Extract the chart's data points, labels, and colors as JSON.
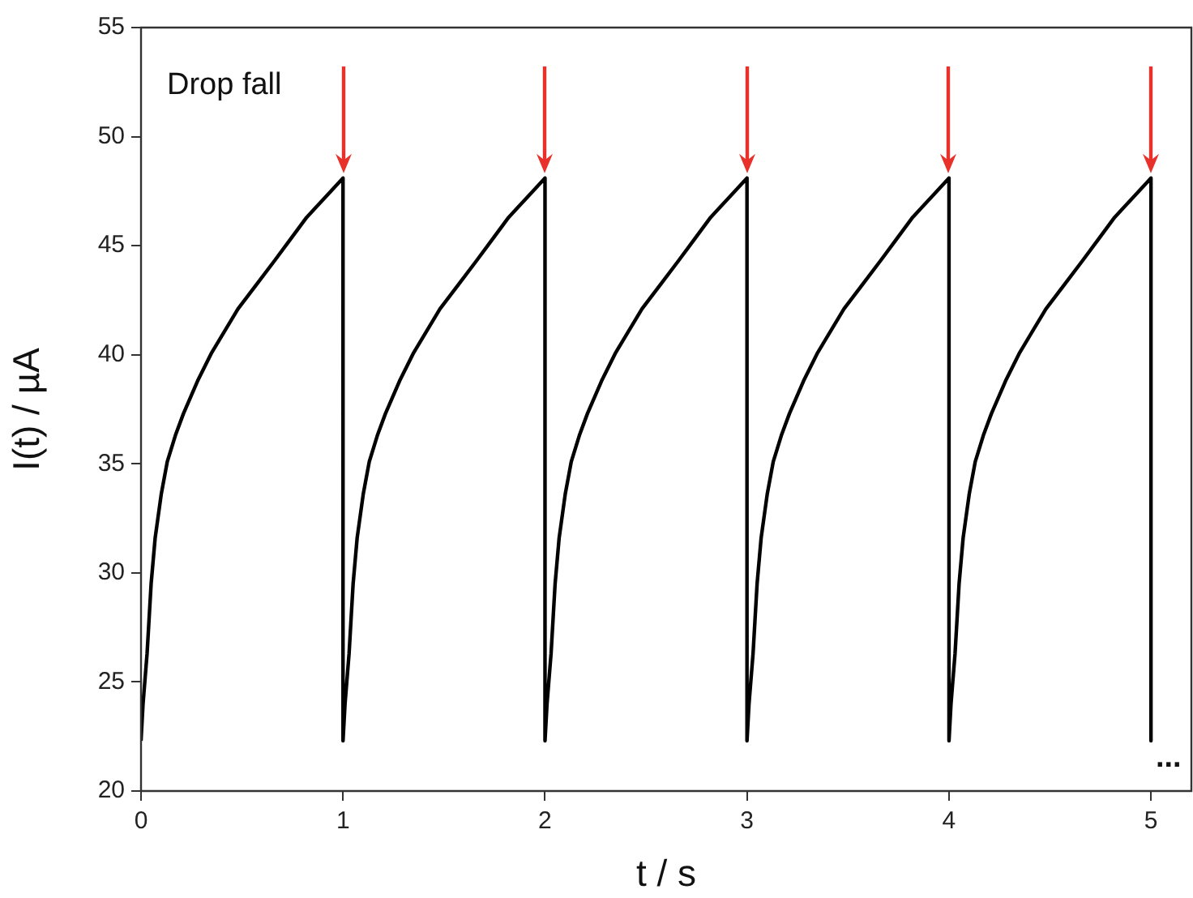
{
  "chart_data": {
    "type": "line",
    "xlabel": "t / s",
    "ylabel": "I(t) / µA",
    "xlim": [
      0,
      5.2
    ],
    "ylim": [
      20,
      55
    ],
    "xticks": [
      0,
      1,
      2,
      3,
      4,
      5
    ],
    "yticks": [
      20,
      25,
      30,
      35,
      40,
      45,
      50,
      55
    ],
    "grid": false,
    "legend": false,
    "marker": "none",
    "line_style": "solid",
    "annotations": [
      "Drop fall",
      "..."
    ],
    "series": [
      {
        "color": "#000000",
        "x": [
          0,
          0.01,
          0.03,
          0.05,
          0.07,
          0.1,
          0.13,
          0.17,
          0.21,
          0.28,
          0.35,
          0.48,
          0.57,
          0.66,
          0.74,
          0.82,
          0.91,
          1,
          1,
          1.01,
          1.03,
          1.05,
          1.07,
          1.1,
          1.13,
          1.17,
          1.21,
          1.28,
          1.35,
          1.48,
          1.57,
          1.66,
          1.74,
          1.82,
          1.91,
          2,
          2,
          2.01,
          2.03,
          2.05,
          2.07,
          2.1,
          2.13,
          2.17,
          2.21,
          2.28,
          2.35,
          2.48,
          2.57,
          2.66,
          2.74,
          2.82,
          2.91,
          3,
          3,
          3.01,
          3.03,
          3.05,
          3.07,
          3.1,
          3.13,
          3.17,
          3.21,
          3.28,
          3.35,
          3.48,
          3.57,
          3.66,
          3.74,
          3.82,
          3.91,
          4,
          4,
          4.01,
          4.03,
          4.05,
          4.07,
          4.1,
          4.13,
          4.17,
          4.21,
          4.28,
          4.35,
          4.48,
          4.57,
          4.66,
          4.74,
          4.82,
          4.91,
          5,
          5
        ],
        "values": [
          22.3,
          24,
          26.3,
          29.5,
          31.6,
          33.6,
          35.1,
          36.3,
          37.3,
          38.8,
          40.1,
          42.1,
          43.2,
          44.3,
          45.3,
          46.3,
          47.2,
          48.1,
          22.3,
          24,
          26.3,
          29.5,
          31.6,
          33.6,
          35.1,
          36.3,
          37.3,
          38.8,
          40.1,
          42.1,
          43.2,
          44.3,
          45.3,
          46.3,
          47.2,
          48.1,
          22.3,
          24,
          26.3,
          29.5,
          31.6,
          33.6,
          35.1,
          36.3,
          37.3,
          38.8,
          40.1,
          42.1,
          43.2,
          44.3,
          45.3,
          46.3,
          47.2,
          48.1,
          22.3,
          24,
          26.3,
          29.5,
          31.6,
          33.6,
          35.1,
          36.3,
          37.3,
          38.8,
          40.1,
          42.1,
          43.2,
          44.3,
          45.3,
          46.3,
          47.2,
          48.1,
          22.3,
          24,
          26.3,
          29.5,
          31.6,
          33.6,
          35.1,
          36.3,
          37.3,
          38.8,
          40.1,
          42.1,
          43.2,
          44.3,
          45.3,
          46.3,
          47.2,
          48.1,
          22.3
        ]
      }
    ]
  }
}
